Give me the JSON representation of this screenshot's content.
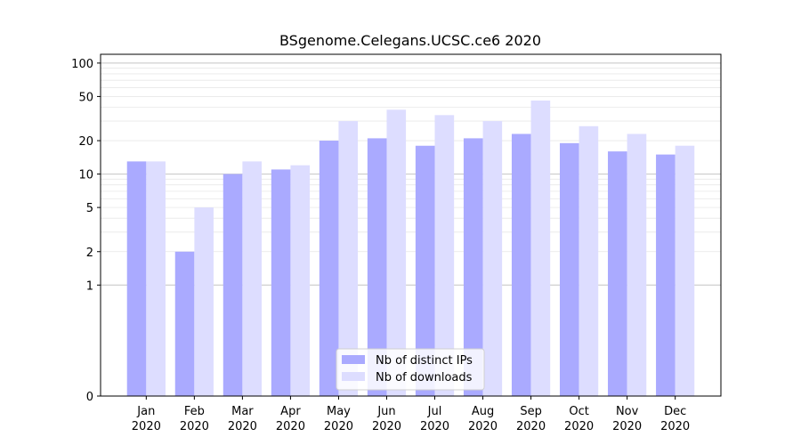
{
  "chart_data": {
    "type": "bar",
    "title": "BSgenome.Celegans.UCSC.ce6 2020",
    "xlabel": "",
    "ylabel": "",
    "yscale": "symlog",
    "ylim": [
      0,
      120
    ],
    "yticks": [
      0,
      1,
      2,
      5,
      10,
      20,
      50,
      100
    ],
    "ytick_labels": [
      "0",
      "1",
      "2",
      "5",
      "10",
      "20",
      "50",
      "100"
    ],
    "categories": [
      "Jan\n2020",
      "Feb\n2020",
      "Mar\n2020",
      "Apr\n2020",
      "May\n2020",
      "Jun\n2020",
      "Jul\n2020",
      "Aug\n2020",
      "Sep\n2020",
      "Oct\n2020",
      "Nov\n2020",
      "Dec\n2020"
    ],
    "series": [
      {
        "name": "Nb of distinct IPs",
        "color": "#aaaaff",
        "values": [
          13,
          2,
          10,
          11,
          20,
          21,
          18,
          21,
          23,
          19,
          16,
          15
        ]
      },
      {
        "name": "Nb of downloads",
        "color": "#ddddff",
        "values": [
          13,
          5,
          13,
          12,
          30,
          38,
          34,
          30,
          46,
          27,
          23,
          18
        ]
      }
    ],
    "legend_position": "bottom-center",
    "grid": true
  }
}
